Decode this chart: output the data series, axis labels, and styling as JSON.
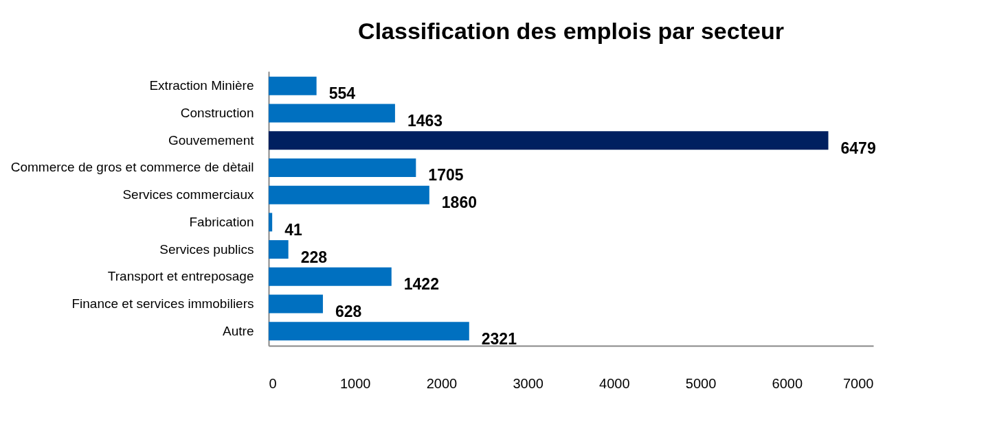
{
  "chart_data": {
    "type": "bar",
    "orientation": "horizontal",
    "title": "Classification des emplois par secteur",
    "categories": [
      "Extraction Minière",
      "Construction",
      "Gouvemement",
      "Commerce de gros et commerce de dètail",
      "Services commerciaux",
      "Fabrication",
      "Services publics",
      "Transport et entreposage",
      "Finance et services immobiliers",
      "Autre"
    ],
    "values": [
      554,
      1463,
      6479,
      1705,
      1860,
      41,
      228,
      1422,
      628,
      2321
    ],
    "colors": [
      "#0070c0",
      "#0070c0",
      "#002060",
      "#0070c0",
      "#0070c0",
      "#0070c0",
      "#0070c0",
      "#0070c0",
      "#0070c0",
      "#0070c0"
    ],
    "xlim": [
      0,
      7000
    ],
    "xticks": [
      0,
      1000,
      2000,
      3000,
      4000,
      5000,
      6000,
      7000
    ],
    "data_labels": true,
    "grid": false
  }
}
